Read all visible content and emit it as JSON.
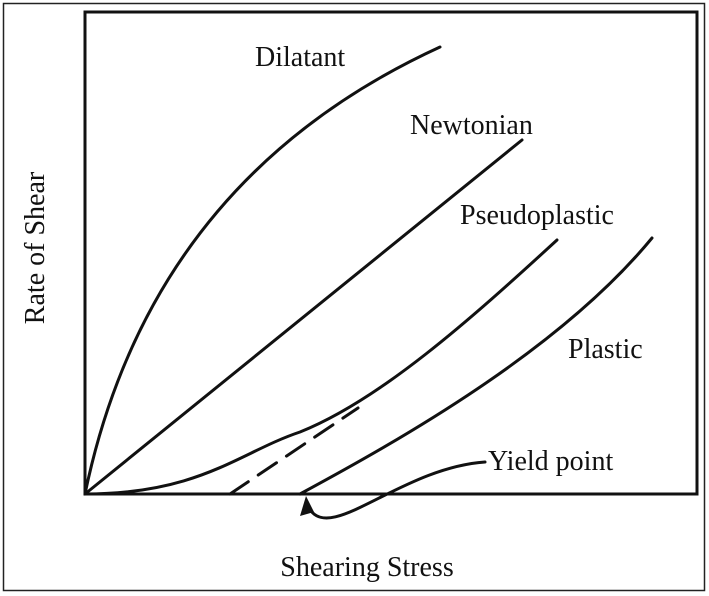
{
  "axes": {
    "x_label": "Shearing Stress",
    "y_label": "Rate of Shear"
  },
  "curves": [
    {
      "label": "Dilatant"
    },
    {
      "label": "Newtonian"
    },
    {
      "label": "Pseudoplastic"
    },
    {
      "label": "Plastic"
    }
  ],
  "annotation": "Yield point"
}
